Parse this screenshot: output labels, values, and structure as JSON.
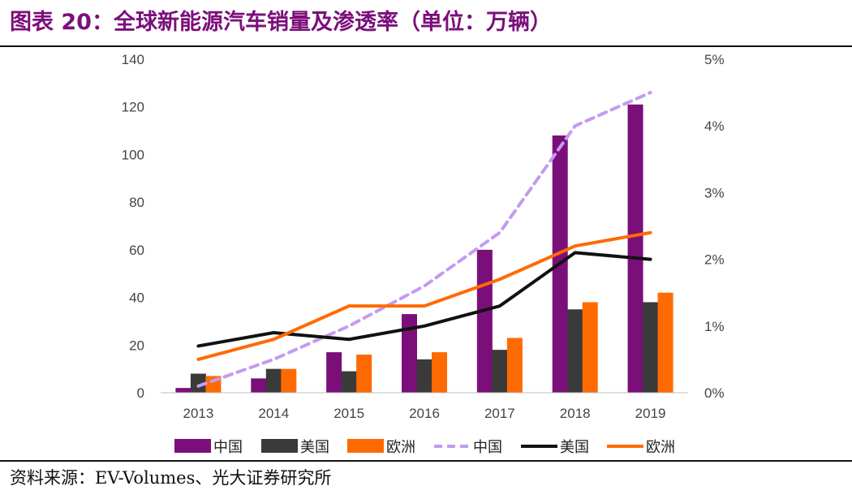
{
  "title": "图表 20：全球新能源汽车销量及渗透率（单位：万辆）",
  "source": "资料来源：EV-Volumes、光大证券研究所",
  "colors": {
    "china": "#7b0f7a",
    "usa": "#3a3a3a",
    "europe": "#ff6a00",
    "china_pen": "#c39bf0",
    "usa_pen": "#111111",
    "europe_pen": "#ff6a00",
    "title": "#7b0f7a"
  },
  "chart_data": {
    "type": "bar",
    "categories": [
      "2013",
      "2014",
      "2015",
      "2016",
      "2017",
      "2018",
      "2019"
    ],
    "y_left": {
      "ticks": [
        "0",
        "20",
        "40",
        "60",
        "80",
        "100",
        "120",
        "140"
      ],
      "lim": [
        0,
        140
      ]
    },
    "y_right": {
      "ticks": [
        "0%",
        "1%",
        "2%",
        "3%",
        "4%",
        "5%"
      ],
      "lim": [
        0,
        5
      ]
    },
    "bar_series": [
      {
        "name": "中国",
        "values": [
          2,
          6,
          17,
          33,
          60,
          108,
          121
        ]
      },
      {
        "name": "美国",
        "values": [
          8,
          10,
          9,
          14,
          18,
          35,
          38
        ]
      },
      {
        "name": "欧洲",
        "values": [
          7,
          10,
          16,
          17,
          23,
          38,
          42
        ]
      }
    ],
    "line_series": [
      {
        "name": "中国",
        "style": "dashed",
        "values": [
          0.1,
          0.5,
          1.0,
          1.6,
          2.4,
          4.0,
          4.5
        ]
      },
      {
        "name": "美国",
        "style": "solid",
        "values": [
          0.7,
          0.9,
          0.8,
          1.0,
          1.3,
          2.1,
          2.0
        ]
      },
      {
        "name": "欧洲",
        "style": "solid",
        "values": [
          0.5,
          0.8,
          1.3,
          1.3,
          1.7,
          2.2,
          2.4
        ]
      }
    ],
    "legend_position": "bottom",
    "grid": false
  }
}
